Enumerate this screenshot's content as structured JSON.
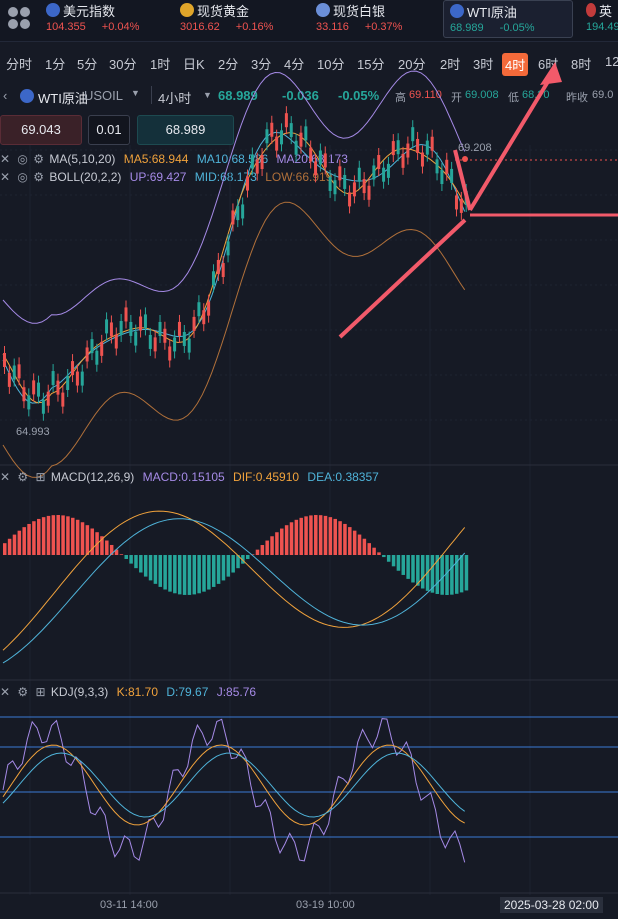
{
  "quotes": [
    {
      "name": "美元指数",
      "value": "104.355",
      "change": "+0.04%",
      "flag_color": "#3c67c8"
    },
    {
      "name": "现货黄金",
      "value": "3016.62",
      "change": "+0.16%",
      "flag_color": "#e0a52a"
    },
    {
      "name": "现货白银",
      "value": "33.116",
      "change": "+0.37%",
      "flag_color": "#6b8fd8"
    },
    {
      "name": "WTI原油",
      "value": "68.989",
      "change": "-0.05%",
      "flag_color": "#3c67c8"
    },
    {
      "name": "英",
      "value": "194.49",
      "change": "",
      "flag_color": "#c23b3b"
    }
  ],
  "periods": [
    "分时",
    "1分",
    "5分",
    "30分",
    "1时",
    "日K",
    "2分",
    "3分",
    "4分",
    "10分",
    "15分",
    "20分",
    "2时",
    "3时",
    "4时",
    "6时",
    "8时",
    "12"
  ],
  "selected_period": "4时",
  "symbol": {
    "name": "WTI原油",
    "code": "USOIL",
    "timeframe": "4小时",
    "price": "68.989",
    "change": "-0.036",
    "change_pct": "-0.05%",
    "high_label": "高",
    "high": "69.110",
    "open_label": "开",
    "open": "69.008",
    "low_label": "低",
    "low": "68.?0",
    "prev_label": "昨收",
    "prev": "69.0"
  },
  "order": {
    "sell_price": "69.043",
    "lot": "0.01",
    "buy_price": "68.989"
  },
  "main_legend": {
    "ma_name": "MA(5,10,20)",
    "ma5": "MA5:68.944",
    "ma10": "MA10:68.586",
    "ma20": "MA20:68.173",
    "boll_name": "BOLL(20,2,2)",
    "boll_up": "UP:69.427",
    "boll_mid": "MID:68.173",
    "boll_low": "LOW:66.919"
  },
  "price_marks": {
    "high": "69.208",
    "low": "64.993"
  },
  "macd_legend": {
    "name": "MACD(12,26,9)",
    "macd": "MACD:0.15105",
    "dif": "DIF:0.45910",
    "dea": "DEA:0.38357"
  },
  "kdj_legend": {
    "name": "KDJ(9,3,3)",
    "k": "K:81.70",
    "d": "D:79.67",
    "j": "J:85.76"
  },
  "time_labels": [
    "03-11 14:00",
    "03-19 10:00",
    "2025-03-28 02:00"
  ],
  "colors": {
    "up": "#ef5350",
    "down": "#26a69a",
    "accent": "#f46a3a",
    "arrow": "#f25a6a",
    "ma5": "#f0a23c",
    "ma10": "#4fb3d9",
    "ma20": "#a58ae6",
    "boll_low": "#b0703a"
  }
}
